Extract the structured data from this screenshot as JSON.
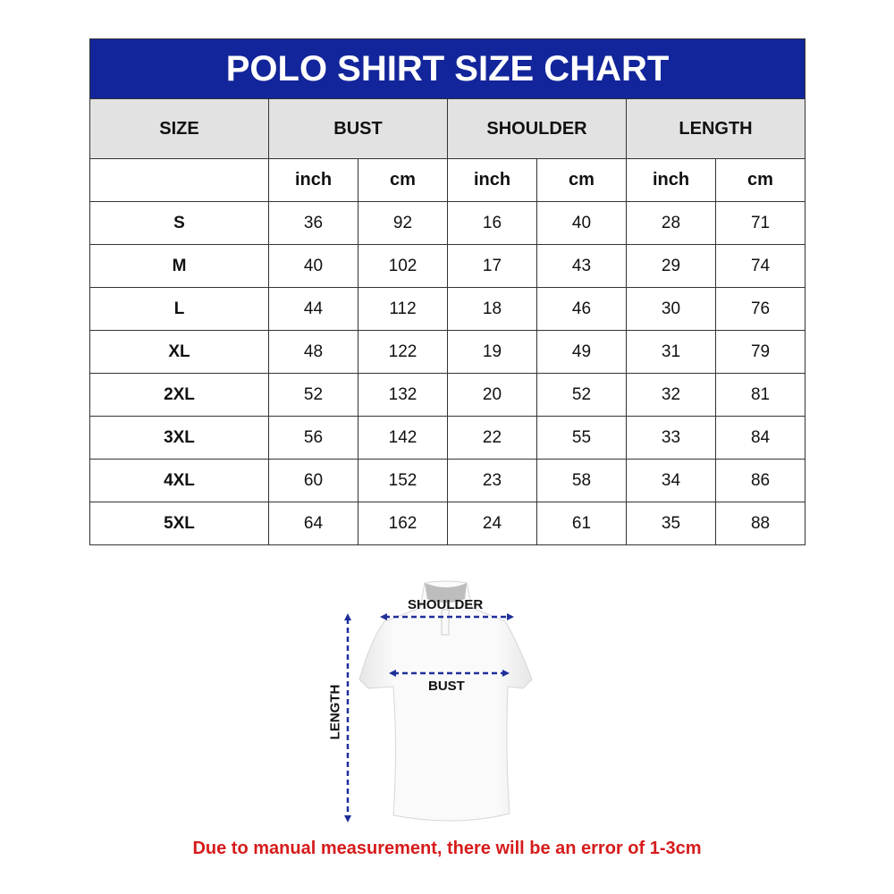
{
  "title": "POLO SHIRT SIZE CHART",
  "headers": [
    "SIZE",
    "BUST",
    "SHOULDER",
    "LENGTH"
  ],
  "units": [
    "inch",
    "cm",
    "inch",
    "cm",
    "inch",
    "cm"
  ],
  "rows": [
    [
      "S",
      "36",
      "92",
      "16",
      "40",
      "28",
      "71"
    ],
    [
      "M",
      "40",
      "102",
      "17",
      "43",
      "29",
      "74"
    ],
    [
      "L",
      "44",
      "112",
      "18",
      "46",
      "30",
      "76"
    ],
    [
      "XL",
      "48",
      "122",
      "19",
      "49",
      "31",
      "79"
    ],
    [
      "2XL",
      "52",
      "132",
      "20",
      "52",
      "32",
      "81"
    ],
    [
      "3XL",
      "56",
      "142",
      "22",
      "55",
      "33",
      "84"
    ],
    [
      "4XL",
      "60",
      "152",
      "23",
      "58",
      "34",
      "86"
    ],
    [
      "5XL",
      "64",
      "162",
      "24",
      "61",
      "35",
      "88"
    ]
  ],
  "diagram": {
    "shoulder": "SHOULDER",
    "bust": "BUST",
    "length": "LENGTH",
    "arrow_color": "#1f2f9a"
  },
  "note": "Due to manual measurement, there will be an error of 1-3cm",
  "colors": {
    "title_bg": "#13259a",
    "header_bg": "#e2e2e2",
    "note": "#d61b1b"
  }
}
